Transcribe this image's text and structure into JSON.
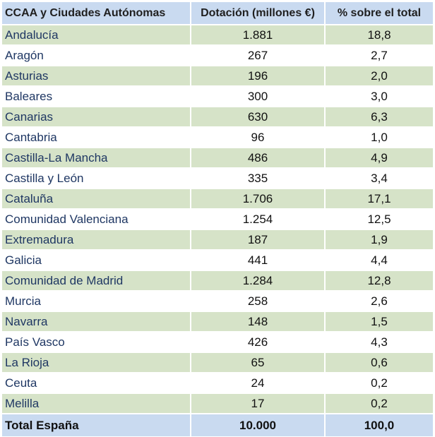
{
  "table": {
    "headers": {
      "name": "CCAA y Ciudades Autónomas",
      "amount": "Dotación (millones €)",
      "percent": "% sobre el total"
    },
    "rows": [
      {
        "name": "Andalucía",
        "amount": "1.881",
        "percent": "18,8"
      },
      {
        "name": "Aragón",
        "amount": "267",
        "percent": "2,7"
      },
      {
        "name": "Asturias",
        "amount": "196",
        "percent": "2,0"
      },
      {
        "name": "Baleares",
        "amount": "300",
        "percent": "3,0"
      },
      {
        "name": "Canarias",
        "amount": "630",
        "percent": "6,3"
      },
      {
        "name": "Cantabria",
        "amount": "96",
        "percent": "1,0"
      },
      {
        "name": "Castilla-La Mancha",
        "amount": "486",
        "percent": "4,9"
      },
      {
        "name": "Castilla y León",
        "amount": "335",
        "percent": "3,4"
      },
      {
        "name": "Cataluña",
        "amount": "1.706",
        "percent": "17,1"
      },
      {
        "name": "Comunidad Valenciana",
        "amount": "1.254",
        "percent": "12,5"
      },
      {
        "name": "Extremadura",
        "amount": "187",
        "percent": "1,9"
      },
      {
        "name": "Galicia",
        "amount": "441",
        "percent": "4,4"
      },
      {
        "name": "Comunidad de Madrid",
        "amount": "1.284",
        "percent": "12,8"
      },
      {
        "name": "Murcia",
        "amount": "258",
        "percent": "2,6"
      },
      {
        "name": "Navarra",
        "amount": "148",
        "percent": "1,5"
      },
      {
        "name": "País Vasco",
        "amount": "426",
        "percent": "4,3"
      },
      {
        "name": "La Rioja",
        "amount": "65",
        "percent": "0,6"
      },
      {
        "name": "Ceuta",
        "amount": "24",
        "percent": "0,2"
      },
      {
        "name": "Melilla",
        "amount": "17",
        "percent": "0,2"
      }
    ],
    "total": {
      "name": "Total España",
      "amount": "10.000",
      "percent": "100,0"
    },
    "colors": {
      "header_bg": "#c9daf0",
      "alt_row_bg": "#d6e3c8",
      "name_text": "#1f3763"
    }
  }
}
